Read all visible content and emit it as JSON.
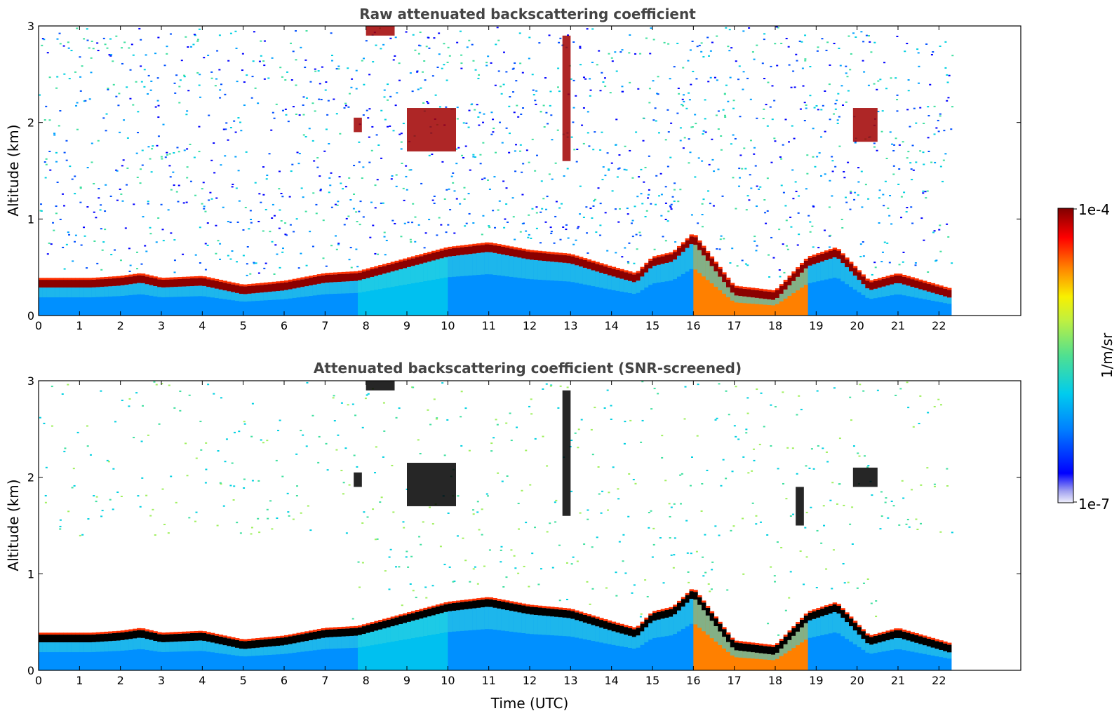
{
  "chart_data": [
    {
      "type": "heatmap",
      "title": "Raw attenuated backscattering coefficient",
      "xlabel": "",
      "ylabel": "Altitude (km)",
      "xlim": [
        0,
        24
      ],
      "ylim": [
        0,
        3
      ],
      "data_xmax": 22.3,
      "xticks": [
        "0",
        "1",
        "2",
        "3",
        "4",
        "5",
        "6",
        "7",
        "8",
        "9",
        "10",
        "11",
        "12",
        "13",
        "14",
        "15",
        "16",
        "17",
        "18",
        "19",
        "20",
        "21",
        "22"
      ],
      "yticks": [
        "0",
        "1",
        "2",
        "3"
      ],
      "grid": false,
      "screened": false,
      "cloud_base_km": [
        [
          1.3,
          0.33
        ],
        [
          2.0,
          0.35
        ],
        [
          2.5,
          0.38
        ],
        [
          3.0,
          0.33
        ],
        [
          4.0,
          0.35
        ],
        [
          5.0,
          0.26
        ],
        [
          6.0,
          0.3
        ],
        [
          7.0,
          0.38
        ],
        [
          7.8,
          0.4
        ],
        [
          10.0,
          0.65
        ],
        [
          11.0,
          0.7
        ],
        [
          12.0,
          0.62
        ],
        [
          13.0,
          0.58
        ],
        [
          14.0,
          0.45
        ],
        [
          14.6,
          0.38
        ],
        [
          15.0,
          0.55
        ],
        [
          15.5,
          0.6
        ],
        [
          16.0,
          0.8
        ],
        [
          17.0,
          0.25
        ],
        [
          18.0,
          0.2
        ],
        [
          18.8,
          0.55
        ],
        [
          19.5,
          0.65
        ],
        [
          20.3,
          0.3
        ],
        [
          21.0,
          0.38
        ],
        [
          22.3,
          0.22
        ]
      ],
      "features": [
        {
          "name": "elevated layer",
          "x": [
            9.0,
            10.2
          ],
          "y": [
            1.7,
            2.15
          ]
        },
        {
          "name": "elevated layer",
          "x": [
            7.7,
            7.9
          ],
          "y": [
            1.9,
            2.05
          ]
        },
        {
          "name": "elevated layer",
          "x": [
            12.8,
            13.0
          ],
          "y": [
            1.6,
            2.9
          ]
        },
        {
          "name": "elevated layer",
          "x": [
            19.9,
            20.5
          ],
          "y": [
            1.8,
            2.15
          ]
        },
        {
          "name": "elevated layer",
          "x": [
            8.0,
            8.7
          ],
          "y": [
            2.9,
            3.0
          ]
        }
      ]
    },
    {
      "type": "heatmap",
      "title": "Attenuated backscattering coefficient (SNR-screened)",
      "xlabel": "Time (UTC)",
      "ylabel": "Altitude (km)",
      "xlim": [
        0,
        24
      ],
      "ylim": [
        0,
        3
      ],
      "data_xmax": 22.3,
      "xticks": [
        "0",
        "1",
        "2",
        "3",
        "4",
        "5",
        "6",
        "7",
        "8",
        "9",
        "10",
        "11",
        "12",
        "13",
        "14",
        "15",
        "16",
        "17",
        "18",
        "19",
        "20",
        "21",
        "22"
      ],
      "yticks": [
        "0",
        "1",
        "2",
        "3"
      ],
      "grid": false,
      "screened": true,
      "cloud_base_km": [
        [
          1.3,
          0.33
        ],
        [
          2.0,
          0.35
        ],
        [
          2.5,
          0.38
        ],
        [
          3.0,
          0.33
        ],
        [
          4.0,
          0.35
        ],
        [
          5.0,
          0.26
        ],
        [
          6.0,
          0.3
        ],
        [
          7.0,
          0.38
        ],
        [
          7.8,
          0.4
        ],
        [
          10.0,
          0.65
        ],
        [
          11.0,
          0.7
        ],
        [
          12.0,
          0.62
        ],
        [
          13.0,
          0.58
        ],
        [
          14.0,
          0.45
        ],
        [
          14.6,
          0.38
        ],
        [
          15.0,
          0.55
        ],
        [
          15.5,
          0.6
        ],
        [
          16.0,
          0.8
        ],
        [
          17.0,
          0.25
        ],
        [
          18.0,
          0.2
        ],
        [
          18.8,
          0.55
        ],
        [
          19.5,
          0.65
        ],
        [
          20.3,
          0.3
        ],
        [
          21.0,
          0.38
        ],
        [
          22.3,
          0.22
        ]
      ],
      "features": [
        {
          "name": "elevated layer",
          "x": [
            9.0,
            10.2
          ],
          "y": [
            1.7,
            2.15
          ]
        },
        {
          "name": "elevated layer",
          "x": [
            7.7,
            7.9
          ],
          "y": [
            1.9,
            2.05
          ]
        },
        {
          "name": "elevated layer",
          "x": [
            12.8,
            13.0
          ],
          "y": [
            1.6,
            2.9
          ]
        },
        {
          "name": "elevated layer",
          "x": [
            19.9,
            20.5
          ],
          "y": [
            1.9,
            2.1
          ]
        },
        {
          "name": "elevated layer",
          "x": [
            18.5,
            18.7
          ],
          "y": [
            1.5,
            1.9
          ]
        },
        {
          "name": "elevated layer",
          "x": [
            8.0,
            8.7
          ],
          "y": [
            2.9,
            3.0
          ]
        }
      ]
    }
  ],
  "colorbar": {
    "max_label": "1e-4",
    "min_label": "1e-7",
    "label": "1/m/sr",
    "colormap": "jet",
    "colors": [
      "#e8e8f8",
      "#c8c8f0",
      "#a0a0f0",
      "#0000ff",
      "#0050ff",
      "#00a0ff",
      "#00d0e0",
      "#40e0a0",
      "#a0f060",
      "#f0f000",
      "#ffb000",
      "#ff6000",
      "#ff0000",
      "#c00000",
      "#800000"
    ]
  }
}
